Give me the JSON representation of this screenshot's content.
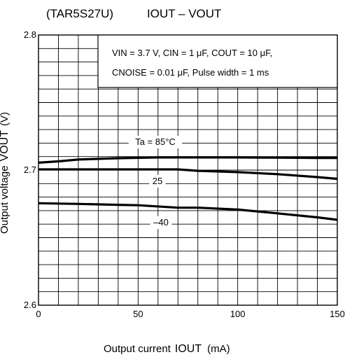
{
  "header": {
    "part": "(TAR5S27U)",
    "title": "IOUT – VOUT"
  },
  "chart_data": {
    "type": "line",
    "title": "IOUT – VOUT",
    "xlabel": "Output current",
    "xlabel_symbol": "IOUT",
    "xlabel_unit": "(mA)",
    "ylabel": "Output voltage",
    "ylabel_symbol": "VOUT",
    "ylabel_unit": "(V)",
    "xlim": [
      0,
      150
    ],
    "ylim": [
      2.6,
      2.8
    ],
    "x_ticks": [
      "0",
      "50",
      "100",
      "150"
    ],
    "y_ticks": [
      "2.6",
      "2.7",
      "2.8"
    ],
    "grid": true,
    "conditions": {
      "line1": "VIN = 3.7 V, CIN = 1 μF, COUT = 10 μF,",
      "line2": "CNOISE = 0.01 μF, Pulse width = 1 ms"
    },
    "series": [
      {
        "name": "Ta = 85°C",
        "x": [
          0,
          10,
          20,
          40,
          60,
          80,
          100,
          120,
          140,
          150
        ],
        "y": [
          2.7055,
          2.7065,
          2.7078,
          2.7088,
          2.7094,
          2.7094,
          2.7094,
          2.7092,
          2.709,
          2.709
        ]
      },
      {
        "name": "25",
        "x": [
          0,
          20,
          40,
          70,
          80,
          100,
          120,
          140,
          150
        ],
        "y": [
          2.7005,
          2.7005,
          2.7005,
          2.7005,
          2.6995,
          2.6985,
          2.697,
          2.6948,
          2.6935
        ]
      },
      {
        "name": "–40",
        "x": [
          0,
          20,
          40,
          50,
          70,
          80,
          100,
          120,
          140,
          150
        ],
        "y": [
          2.6755,
          2.675,
          2.6743,
          2.674,
          2.6722,
          2.6722,
          2.6708,
          2.668,
          2.665,
          2.6632
        ]
      }
    ]
  }
}
